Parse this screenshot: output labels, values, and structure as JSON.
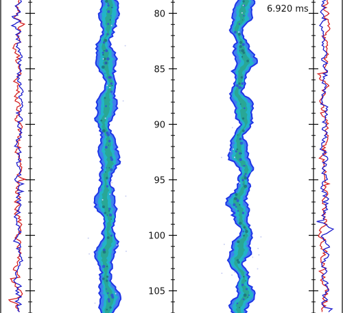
{
  "chart_data": {
    "type": "line",
    "time_label": "6.920 ms",
    "y_axis": {
      "ylim": [
        78.8,
        107.0
      ],
      "ticks": [
        80,
        85,
        90,
        95,
        100,
        105
      ],
      "tick_labels": [
        "80",
        "85",
        "90",
        "95",
        "100",
        "105"
      ],
      "inverted": true
    },
    "panels": [
      {
        "name": "left-profile-panel",
        "kind": "line-profiles"
      },
      {
        "name": "left-field-panel",
        "kind": "image-field"
      },
      {
        "name": "right-field-panel",
        "kind": "image-field"
      },
      {
        "name": "right-profile-panel",
        "kind": "line-profiles"
      }
    ],
    "series": [
      {
        "color": "#d42020"
      },
      {
        "color": "#1a1acc"
      }
    ],
    "colors": {
      "outline": "#1f35e6",
      "fill_outer": "#3f7fee",
      "fill_mid": "#22b3c8",
      "fill_core": "#2aa58c",
      "axis": "#000000"
    },
    "grid": false
  }
}
